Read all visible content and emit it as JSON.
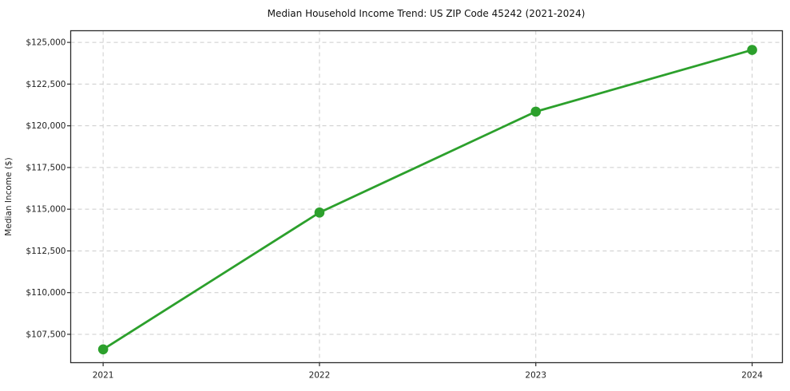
{
  "chart_data": {
    "type": "line",
    "title": "Median Household Income Trend: US ZIP Code 45242 (2021-2024)",
    "xlabel": "",
    "ylabel": "Median Income ($)",
    "categories": [
      2021,
      2022,
      2023,
      2024
    ],
    "x_tick_labels": [
      "2021",
      "2022",
      "2023",
      "2024"
    ],
    "series": [
      {
        "name": "Median household income",
        "values": [
          106600,
          114800,
          120850,
          124550
        ]
      }
    ],
    "y_ticks": [
      107500,
      110000,
      112500,
      115000,
      117500,
      120000,
      122500,
      125000
    ],
    "y_tick_labels": [
      "$107,500",
      "$110,000",
      "$112,500",
      "$115,000",
      "$117,500",
      "$120,000",
      "$122,500",
      "$125,000"
    ],
    "xlim": [
      2020.85,
      2024.14
    ],
    "ylim": [
      105800,
      125700
    ],
    "grid": "dashed-both-axes",
    "legend": "none",
    "line_color": "#2ca02c",
    "marker": "circle",
    "grid_color": "#cccccc",
    "frame_color": "#2b2b2b",
    "text_color": "#222222"
  }
}
